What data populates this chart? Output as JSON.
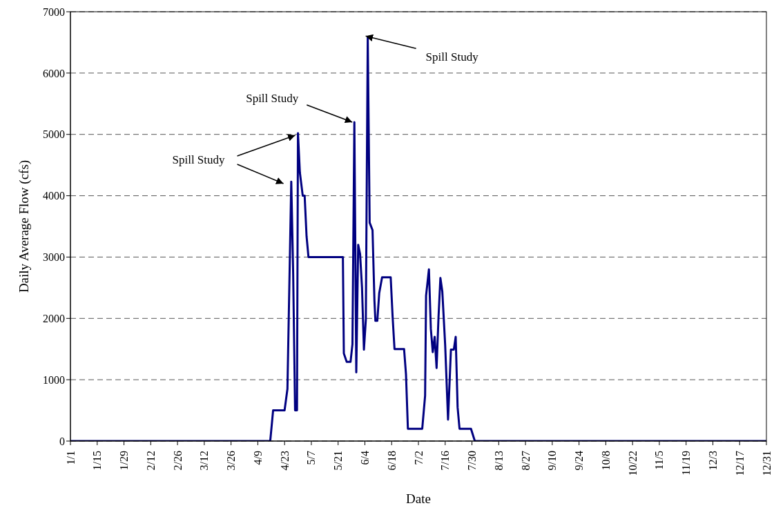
{
  "chart_data": {
    "type": "line",
    "xlabel": "Date",
    "ylabel": "Daily Average Flow (cfs)",
    "x": [
      "--01-01",
      "--04-15T12:00",
      "--04-16T12:00",
      "--04-17",
      "--04-23",
      "--04-24T12:00",
      "--04-26T12:00",
      "--04-27T12:00",
      "--04-28T12:00",
      "--04-29T12:00",
      "--04-30",
      "--05-01",
      "--05-02T12:00",
      "--05-03T12:00",
      "--05-04T12:00",
      "--05-05T12:00",
      "--05-23T12:00",
      "--05-24",
      "--05-25T12:00",
      "--05-27T12:00",
      "--05-28T12:00",
      "--05-29T12:00",
      "--05-30T12:00",
      "--05-31T12:00",
      "--06-01T12:00",
      "--06-02T12:00",
      "--06-03T12:00",
      "--06-04T12:00",
      "--06-05T12:00",
      "--06-06T12:00",
      "--06-08",
      "--06-09",
      "--06-09T12:00",
      "--06-10T12:00",
      "--06-11T12:00",
      "--06-13",
      "--06-17T12:00",
      "--06-18T12:00",
      "--06-19T12:00",
      "--06-24T12:00",
      "--06-25T12:00",
      "--06-26T12:00",
      "--07-04",
      "--07-05T12:00",
      "--07-06",
      "--07-07T12:00",
      "--07-08T12:00",
      "--07-09T12:00",
      "--07-10T12:00",
      "--07-11T12:00",
      "--07-12T12:00",
      "--07-13T12:00",
      "--07-14T12:00",
      "--07-16",
      "--07-17T12:00",
      "--07-19",
      "--07-20T12:00",
      "--07-21T12:00",
      "--07-22T12:00",
      "--07-23T12:00",
      "--07-29T12:00",
      "--07-31T12:00",
      "--12-31"
    ],
    "series": [
      {
        "color": "#000080",
        "values": [
          0,
          0,
          330,
          500,
          500,
          850,
          4230,
          2720,
          500,
          500,
          5020,
          4380,
          4000,
          4000,
          3340,
          3000,
          3000,
          1430,
          1290,
          1290,
          1580,
          5200,
          1120,
          3200,
          3050,
          2500,
          1490,
          1980,
          6580,
          3560,
          3440,
          2290,
          1960,
          1960,
          2410,
          2670,
          2670,
          2030,
          1500,
          1500,
          1090,
          200,
          200,
          740,
          2370,
          2800,
          1830,
          1450,
          1700,
          1190,
          2010,
          2660,
          2440,
          1560,
          350,
          1490,
          1490,
          1700,
          550,
          200,
          200,
          0,
          0
        ]
      }
    ],
    "xlim": [
      "--01-01",
      "--12-31"
    ],
    "xticks": [
      {
        "value": "--01-01",
        "label": "1/1"
      },
      {
        "value": "--01-15",
        "label": "1/15"
      },
      {
        "value": "--01-29",
        "label": "1/29"
      },
      {
        "value": "--02-12",
        "label": "2/12"
      },
      {
        "value": "--02-26",
        "label": "2/26"
      },
      {
        "value": "--03-12",
        "label": "3/12"
      },
      {
        "value": "--03-26",
        "label": "3/26"
      },
      {
        "value": "--04-09",
        "label": "4/9"
      },
      {
        "value": "--04-23",
        "label": "4/23"
      },
      {
        "value": "--05-07",
        "label": "5/7"
      },
      {
        "value": "--05-21",
        "label": "5/21"
      },
      {
        "value": "--06-04",
        "label": "6/4"
      },
      {
        "value": "--06-18",
        "label": "6/18"
      },
      {
        "value": "--07-02",
        "label": "7/2"
      },
      {
        "value": "--07-16",
        "label": "7/16"
      },
      {
        "value": "--07-30",
        "label": "7/30"
      },
      {
        "value": "--08-13",
        "label": "8/13"
      },
      {
        "value": "--08-27",
        "label": "8/27"
      },
      {
        "value": "--09-10",
        "label": "9/10"
      },
      {
        "value": "--09-24",
        "label": "9/24"
      },
      {
        "value": "--10-08",
        "label": "10/8"
      },
      {
        "value": "--10-22",
        "label": "10/22"
      },
      {
        "value": "--11-05",
        "label": "11/5"
      },
      {
        "value": "--11-19",
        "label": "11/19"
      },
      {
        "value": "--12-03",
        "label": "12/3"
      },
      {
        "value": "--12-17",
        "label": "12/17"
      },
      {
        "value": "--12-31",
        "label": "12/31"
      }
    ],
    "ylim": [
      0,
      7000
    ],
    "yticks": [
      0,
      1000,
      2000,
      3000,
      4000,
      5000,
      6000,
      7000
    ],
    "grid": "y",
    "marker": "none",
    "line_style": "solid",
    "annotations": [
      {
        "text": "Spill Study",
        "x": "--04-30",
        "y": 5020
      },
      {
        "text": "Spill Study",
        "x": "--05-29T12:00",
        "y": 5200
      },
      {
        "text": "Spill Study",
        "x": "--06-05T12:00",
        "y": 6580
      }
    ]
  }
}
